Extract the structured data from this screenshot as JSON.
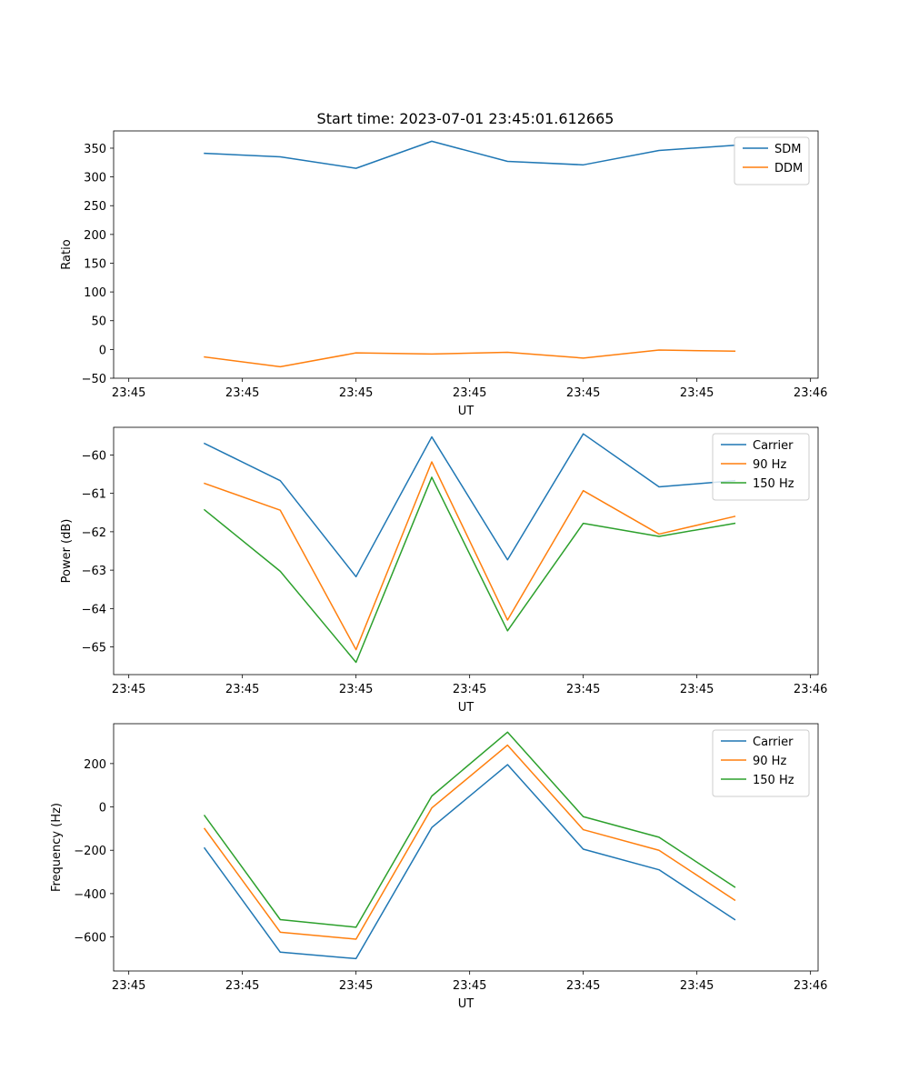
{
  "figure": {
    "title": "Start time: 2023-07-01 23:45:01.612665"
  },
  "chart_data": [
    {
      "type": "line",
      "title": "Start time: 2023-07-01 23:45:01.612665",
      "xlabel": "UT",
      "ylabel": "Ratio",
      "x": [
        1,
        2,
        3,
        4,
        5,
        6,
        7,
        8
      ],
      "xlim": [
        -0.2,
        9.1
      ],
      "xticks": [
        0,
        1.5,
        3,
        4.5,
        6,
        7.5,
        9
      ],
      "xtick_labels": [
        "23:45",
        "23:45",
        "23:45",
        "23:45",
        "23:45",
        "23:45",
        "23:46"
      ],
      "ylim": [
        -50,
        380
      ],
      "yticks": [
        -50,
        0,
        50,
        100,
        150,
        200,
        250,
        300,
        350
      ],
      "ytick_labels": [
        "−50",
        "0",
        "50",
        "100",
        "150",
        "200",
        "250",
        "300",
        "350"
      ],
      "legend_position": "top-right",
      "series": [
        {
          "name": "SDM",
          "color": "#1f77b4",
          "values": [
            341,
            335,
            315,
            362,
            327,
            321,
            346,
            355
          ]
        },
        {
          "name": "DDM",
          "color": "#ff7f0e",
          "values": [
            -13,
            -30,
            -6,
            -8,
            -5,
            -15,
            -1,
            -3
          ]
        }
      ]
    },
    {
      "type": "line",
      "title": "",
      "xlabel": "UT",
      "ylabel": "Power (dB)",
      "x": [
        1,
        2,
        3,
        4,
        5,
        6,
        7,
        8
      ],
      "xlim": [
        -0.2,
        9.1
      ],
      "xticks": [
        0,
        1.5,
        3,
        4.5,
        6,
        7.5,
        9
      ],
      "xtick_labels": [
        "23:45",
        "23:45",
        "23:45",
        "23:45",
        "23:45",
        "23:45",
        "23:46"
      ],
      "ylim": [
        -65.72,
        -59.28
      ],
      "yticks": [
        -65,
        -64,
        -63,
        -62,
        -61,
        -60
      ],
      "ytick_labels": [
        "−65",
        "−64",
        "−63",
        "−62",
        "−61",
        "−60"
      ],
      "legend_position": "top-right",
      "series": [
        {
          "name": "Carrier",
          "color": "#1f77b4",
          "values": [
            -59.7,
            -60.67,
            -63.17,
            -59.53,
            -62.73,
            -59.45,
            -60.83,
            -60.67
          ]
        },
        {
          "name": "90 Hz",
          "color": "#ff7f0e",
          "values": [
            -60.74,
            -61.44,
            -65.07,
            -60.18,
            -64.3,
            -60.93,
            -62.06,
            -61.6
          ]
        },
        {
          "name": "150 Hz",
          "color": "#2ca02c",
          "values": [
            -61.43,
            -63.03,
            -65.4,
            -60.58,
            -64.58,
            -61.78,
            -62.12,
            -61.78
          ]
        }
      ]
    },
    {
      "type": "line",
      "title": "",
      "xlabel": "UT",
      "ylabel": "Frequency (Hz)",
      "x": [
        1,
        2,
        3,
        4,
        5,
        6,
        7,
        8
      ],
      "xlim": [
        -0.2,
        9.1
      ],
      "xticks": [
        0,
        1.5,
        3,
        4.5,
        6,
        7.5,
        9
      ],
      "xtick_labels": [
        "23:45",
        "23:45",
        "23:45",
        "23:45",
        "23:45",
        "23:45",
        "23:46"
      ],
      "ylim": [
        -757,
        384
      ],
      "yticks": [
        -600,
        -400,
        -200,
        0,
        200
      ],
      "ytick_labels": [
        "−600",
        "−400",
        "−200",
        "0",
        "200"
      ],
      "legend_position": "top-right",
      "series": [
        {
          "name": "Carrier",
          "color": "#1f77b4",
          "values": [
            -190,
            -670,
            -700,
            -95,
            195,
            -195,
            -290,
            -520
          ]
        },
        {
          "name": "90 Hz",
          "color": "#ff7f0e",
          "values": [
            -100,
            -578,
            -610,
            -5,
            285,
            -105,
            -200,
            -430
          ]
        },
        {
          "name": "150 Hz",
          "color": "#2ca02c",
          "values": [
            -40,
            -520,
            -555,
            50,
            345,
            -45,
            -140,
            -370
          ]
        }
      ]
    }
  ]
}
